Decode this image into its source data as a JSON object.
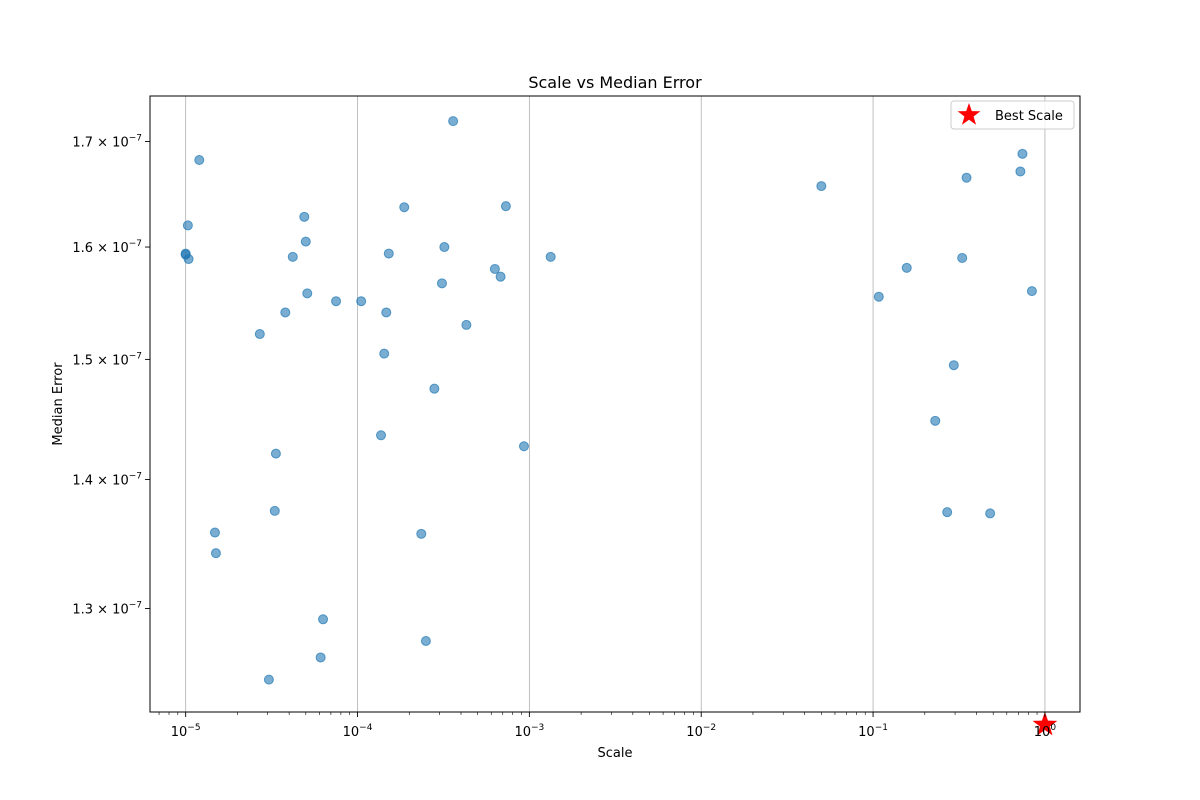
{
  "chart_data": {
    "type": "scatter",
    "title": "Scale vs Median Error",
    "xlabel": "Scale",
    "ylabel": "Median Error",
    "xscale": "log",
    "yscale": "log",
    "xlim": [
      6.2e-06,
      1.6
    ],
    "ylim": [
      1.225e-07,
      1.745e-07
    ],
    "grid": "vertical",
    "legend": {
      "placement": "top-right",
      "entries": [
        {
          "label": "Best Scale",
          "marker": "star",
          "color": "#ff0000"
        }
      ]
    },
    "x_ticks": [
      {
        "base": "10",
        "exp": "−5"
      },
      {
        "base": "10",
        "exp": "−4"
      },
      {
        "base": "10",
        "exp": "−3"
      },
      {
        "base": "10",
        "exp": "−2"
      },
      {
        "base": "10",
        "exp": "−1"
      },
      {
        "base": "10",
        "exp": "0"
      }
    ],
    "y_ticks": [
      {
        "mant": "1.3",
        "exp": "−7"
      },
      {
        "mant": "1.4",
        "exp": "−7"
      },
      {
        "mant": "1.5",
        "exp": "−7"
      },
      {
        "mant": "1.6",
        "exp": "−7"
      },
      {
        "mant": "1.7",
        "exp": "−7"
      }
    ],
    "point_color": "#1f77b4",
    "points": [
      [
        1e-05,
        1.594e-07
      ],
      [
        1e-05,
        1.593e-07
      ],
      [
        1.04e-05,
        1.589e-07
      ],
      [
        1.03e-05,
        1.62e-07
      ],
      [
        1.2e-05,
        1.682e-07
      ],
      [
        1.48e-05,
        1.358e-07
      ],
      [
        1.5e-05,
        1.342e-07
      ],
      [
        2.7e-05,
        1.522e-07
      ],
      [
        3.05e-05,
        1.248e-07
      ],
      [
        3.3e-05,
        1.375e-07
      ],
      [
        3.35e-05,
        1.421e-07
      ],
      [
        3.8e-05,
        1.541e-07
      ],
      [
        4.2e-05,
        1.591e-07
      ],
      [
        4.9e-05,
        1.628e-07
      ],
      [
        5e-05,
        1.605e-07
      ],
      [
        5.1e-05,
        1.558e-07
      ],
      [
        6.1e-05,
        1.264e-07
      ],
      [
        6.3e-05,
        1.292e-07
      ],
      [
        7.5e-05,
        1.551e-07
      ],
      [
        0.000105,
        1.551e-07
      ],
      [
        0.000137,
        1.436e-07
      ],
      [
        0.000143,
        1.505e-07
      ],
      [
        0.000147,
        1.541e-07
      ],
      [
        0.000152,
        1.594e-07
      ],
      [
        0.000187,
        1.637e-07
      ],
      [
        0.000235,
        1.357e-07
      ],
      [
        0.00025,
        1.276e-07
      ],
      [
        0.00028,
        1.475e-07
      ],
      [
        0.00031,
        1.567e-07
      ],
      [
        0.00032,
        1.6e-07
      ],
      [
        0.00036,
        1.72e-07
      ],
      [
        0.00043,
        1.53e-07
      ],
      [
        0.00063,
        1.58e-07
      ],
      [
        0.00068,
        1.573e-07
      ],
      [
        0.00073,
        1.638e-07
      ],
      [
        0.00093,
        1.427e-07
      ],
      [
        0.00133,
        1.591e-07
      ],
      [
        0.05,
        1.657e-07
      ],
      [
        0.108,
        1.555e-07
      ],
      [
        0.157,
        1.581e-07
      ],
      [
        0.23,
        1.448e-07
      ],
      [
        0.27,
        1.374e-07
      ],
      [
        0.295,
        1.495e-07
      ],
      [
        0.33,
        1.59e-07
      ],
      [
        0.35,
        1.665e-07
      ],
      [
        0.48,
        1.373e-07
      ],
      [
        0.72,
        1.671e-07
      ],
      [
        0.74,
        1.688e-07
      ],
      [
        0.84,
        1.56e-07
      ]
    ],
    "best_scale": {
      "x": 1.0,
      "y": 1.216e-07,
      "color": "#ff0000"
    }
  }
}
